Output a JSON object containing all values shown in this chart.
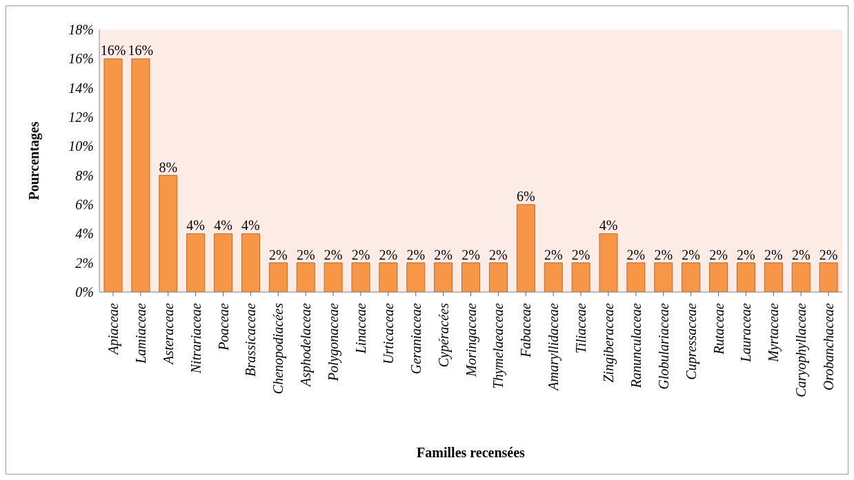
{
  "chart_data": {
    "type": "bar",
    "xlabel": "Familles recensées",
    "ylabel": "Pourcentages",
    "categories": [
      "Apiaceae",
      "Lamiaceae",
      "Asteraceae",
      "Nitrariaceae",
      "Poaceae",
      "Brassicaceae",
      "Chenopodiacées",
      "Asphodelaceae",
      "Polygonaceae",
      "Linaceae",
      "Urticaceae",
      "Geraniaceae",
      "Cypéracées",
      "Moringaceae",
      "Thymelaeaceae",
      "Fabaceae",
      "Amaryllidaceae",
      "Tiliaceae",
      "Zingiberaceae",
      "Ranunculaceae",
      "Globulariaceae",
      "Cupressaceae",
      "Rutaceae",
      "Lauraceae",
      "Myrtaceae",
      "Caryophyllaceae",
      "Orobanchaceae"
    ],
    "values": [
      16,
      16,
      8,
      4,
      4,
      4,
      2,
      2,
      2,
      2,
      2,
      2,
      2,
      2,
      2,
      6,
      2,
      2,
      4,
      2,
      2,
      2,
      2,
      2,
      2,
      2,
      2
    ],
    "value_labels": [
      "16%",
      "16%",
      "8%",
      "4%",
      "4%",
      "4%",
      "2%",
      "2%",
      "2%",
      "2%",
      "2%",
      "2%",
      "2%",
      "2%",
      "2%",
      "6%",
      "2%",
      "2%",
      "4%",
      "2%",
      "2%",
      "2%",
      "2%",
      "2%",
      "2%",
      "2%",
      "2%"
    ],
    "color": "#f79646",
    "ylim": [
      0,
      18
    ],
    "yticks": [
      {
        "value": 0,
        "label": "0%"
      },
      {
        "value": 2,
        "label": "2%"
      },
      {
        "value": 4,
        "label": "4%"
      },
      {
        "value": 6,
        "label": "6%"
      },
      {
        "value": 8,
        "label": "8%"
      },
      {
        "value": 10,
        "label": "10%"
      },
      {
        "value": 12,
        "label": "12%"
      },
      {
        "value": 14,
        "label": "14%"
      },
      {
        "value": 16,
        "label": "16%"
      },
      {
        "value": 18,
        "label": "18%"
      }
    ],
    "grid": false,
    "legend": false
  }
}
